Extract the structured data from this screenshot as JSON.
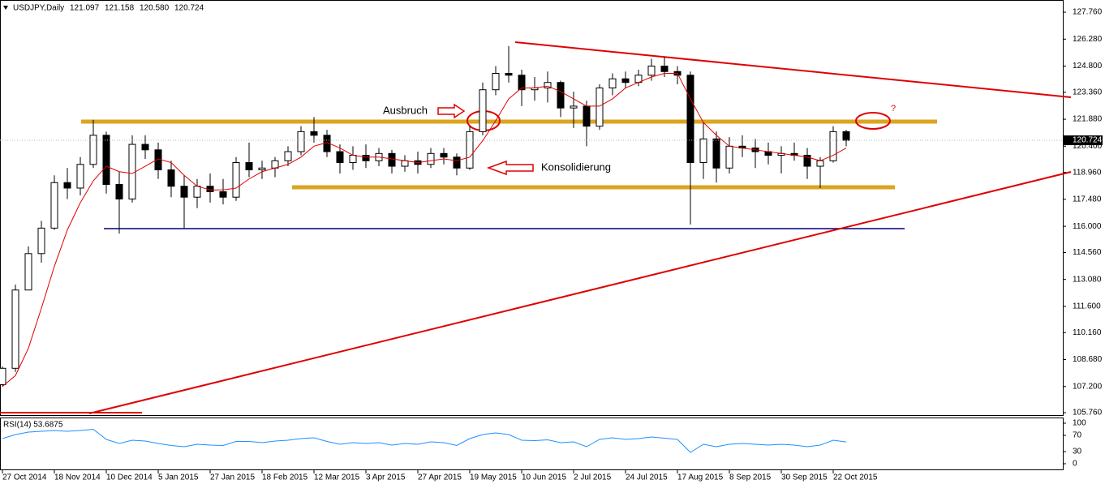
{
  "chart_data": {
    "type": "candlestick",
    "header": "USDJPY,Daily",
    "header_ohlc": [
      "121.097",
      "121.158",
      "120.580",
      "120.724"
    ],
    "categories": [
      "27 Oct 2014",
      null,
      null,
      null,
      "18 Nov 2014",
      null,
      null,
      null,
      "10 Dec 2014",
      null,
      null,
      null,
      "5 Jan 2015",
      null,
      null,
      null,
      "27 Jan 2015",
      null,
      null,
      null,
      "18 Feb 2015",
      null,
      null,
      null,
      "12 Mar 2015",
      null,
      null,
      null,
      "3 Apr 2015",
      null,
      null,
      null,
      "27 Apr 2015",
      null,
      null,
      null,
      "19 May 2015",
      null,
      null,
      null,
      "10 Jun 2015",
      null,
      null,
      null,
      "2 Jul 2015",
      null,
      null,
      null,
      "24 Jul 2015",
      null,
      null,
      null,
      "17 Aug 2015",
      null,
      null,
      null,
      "8 Sep 2015",
      null,
      null,
      null,
      "30 Sep 2015",
      null,
      null,
      null,
      "22 Oct 2015",
      null
    ],
    "open": [
      107.3,
      108.2,
      112.5,
      114.5,
      115.9,
      118.4,
      118.1,
      119.4,
      121.0,
      118.3,
      117.5,
      120.5,
      120.2,
      119.1,
      118.2,
      117.6,
      118.2,
      117.9,
      117.6,
      119.5,
      119.1,
      119.2,
      119.6,
      120.1,
      121.2,
      121.0,
      120.1,
      119.5,
      119.9,
      119.6,
      120.0,
      119.3,
      119.6,
      119.4,
      120.0,
      119.8,
      119.2,
      121.2,
      123.5,
      124.4,
      124.3,
      123.5,
      123.6,
      123.9,
      122.5,
      122.6,
      121.5,
      123.6,
      124.1,
      123.9,
      124.3,
      124.8,
      124.5,
      124.3,
      119.5,
      120.8,
      119.2,
      120.4,
      120.3,
      120.1,
      119.9,
      120.0,
      119.9,
      119.3,
      119.6,
      121.2
    ],
    "high": [
      108.3,
      112.8,
      114.9,
      116.3,
      118.8,
      119.2,
      119.8,
      121.85,
      121.2,
      119.0,
      121.0,
      121.0,
      120.6,
      119.6,
      118.8,
      118.6,
      118.9,
      118.6,
      119.8,
      120.6,
      119.6,
      119.8,
      120.4,
      121.5,
      122.0,
      121.3,
      120.5,
      120.4,
      120.5,
      120.3,
      120.2,
      119.9,
      120.1,
      120.3,
      120.3,
      120.0,
      121.5,
      123.9,
      124.8,
      125.9,
      124.6,
      124.2,
      124.5,
      124.0,
      123.4,
      122.9,
      123.8,
      124.4,
      124.5,
      124.6,
      125.2,
      125.3,
      124.8,
      124.5,
      121.7,
      121.2,
      120.9,
      121.0,
      120.8,
      120.6,
      120.4,
      120.6,
      120.3,
      119.8,
      121.5,
      121.3
    ],
    "low": [
      107.2,
      108.0,
      112.5,
      114.0,
      115.8,
      117.5,
      117.7,
      119.2,
      117.8,
      115.6,
      117.3,
      119.7,
      118.6,
      117.6,
      115.9,
      117.0,
      117.3,
      117.2,
      117.4,
      118.7,
      118.6,
      118.7,
      119.3,
      119.9,
      120.6,
      119.8,
      118.9,
      119.1,
      119.2,
      119.3,
      118.9,
      119.0,
      118.9,
      119.2,
      119.4,
      118.8,
      119.1,
      121.0,
      123.2,
      123.9,
      122.6,
      122.9,
      122.8,
      122.0,
      121.4,
      120.4,
      121.3,
      123.2,
      123.6,
      123.7,
      124.0,
      124.2,
      123.8,
      116.1,
      118.6,
      118.4,
      118.9,
      119.8,
      119.2,
      119.4,
      118.9,
      119.6,
      118.6,
      118.1,
      119.5,
      120.4
    ],
    "close": [
      108.2,
      112.5,
      114.5,
      115.9,
      118.4,
      118.1,
      119.4,
      121.0,
      118.3,
      117.5,
      120.5,
      120.2,
      119.1,
      118.2,
      117.6,
      118.2,
      117.9,
      117.6,
      119.5,
      119.1,
      119.2,
      119.6,
      120.1,
      121.2,
      121.0,
      120.1,
      119.5,
      119.9,
      119.6,
      120.0,
      119.3,
      119.6,
      119.4,
      120.0,
      119.8,
      119.2,
      121.2,
      123.5,
      124.4,
      124.3,
      123.5,
      123.6,
      123.9,
      122.5,
      122.6,
      121.5,
      123.6,
      124.1,
      123.9,
      124.3,
      124.8,
      124.5,
      124.3,
      119.5,
      120.8,
      119.2,
      120.4,
      120.3,
      120.1,
      119.9,
      120.0,
      119.9,
      119.3,
      119.6,
      121.2,
      120.724
    ],
    "ma": {
      "color": "#e00000",
      "values": [
        107.2,
        107.8,
        109.3,
        111.5,
        113.8,
        115.8,
        117.3,
        118.5,
        119.3,
        119.0,
        118.9,
        119.3,
        119.7,
        119.5,
        118.8,
        118.2,
        118.0,
        118.0,
        118.1,
        118.6,
        119.0,
        119.2,
        119.4,
        119.8,
        120.4,
        120.6,
        120.3,
        119.9,
        119.8,
        119.8,
        119.7,
        119.6,
        119.5,
        119.6,
        119.7,
        119.6,
        119.8,
        120.7,
        121.8,
        123.0,
        123.6,
        123.6,
        123.7,
        123.4,
        123.0,
        122.6,
        122.6,
        123.0,
        123.6,
        123.9,
        124.2,
        124.4,
        124.4,
        123.0,
        121.7,
        121.0,
        120.4,
        120.3,
        120.2,
        120.1,
        120.0,
        119.9,
        119.8,
        119.6,
        119.9,
        120.3
      ]
    },
    "last_price": {
      "value": 120.724,
      "label": "120.724"
    },
    "xlim": [
      -0.1875,
      81.6875
    ],
    "ylim": [
      105.63,
      128.43
    ],
    "yticks": [
      {
        "value": 127.76,
        "label": "127.760"
      },
      {
        "value": 126.28,
        "label": "126.280"
      },
      {
        "value": 124.8,
        "label": "124.800"
      },
      {
        "value": 123.36,
        "label": "123.360"
      },
      {
        "value": 121.88,
        "label": "121.880"
      },
      {
        "value": 120.4,
        "label": "120.400"
      },
      {
        "value": 118.96,
        "label": "118.960"
      },
      {
        "value": 117.48,
        "label": "117.480"
      },
      {
        "value": 116,
        "label": "116.000"
      },
      {
        "value": 114.56,
        "label": "114.560"
      },
      {
        "value": 113.08,
        "label": "113.080"
      },
      {
        "value": 111.6,
        "label": "111.600"
      },
      {
        "value": 110.16,
        "label": "110.160"
      },
      {
        "value": 108.68,
        "label": "108.680"
      },
      {
        "value": 107.2,
        "label": "107.200"
      },
      {
        "value": 105.76,
        "label": "105.760"
      }
    ],
    "rsi": {
      "label": "RSI(14) 53.6875",
      "color": "#1e90ff",
      "ylim": [
        -16,
        112
      ],
      "yticks": [
        100,
        70,
        30,
        0
      ],
      "values": [
        62,
        72,
        78,
        80,
        82,
        80,
        82,
        85,
        60,
        50,
        58,
        56,
        50,
        45,
        42,
        48,
        46,
        45,
        55,
        55,
        52,
        56,
        58,
        62,
        64,
        55,
        48,
        52,
        50,
        52,
        46,
        50,
        48,
        54,
        52,
        45,
        62,
        72,
        76,
        72,
        58,
        57,
        59,
        52,
        54,
        42,
        60,
        64,
        60,
        62,
        66,
        63,
        60,
        28,
        48,
        42,
        48,
        50,
        48,
        46,
        48,
        46,
        42,
        46,
        58,
        53.6875
      ]
    },
    "annotations": {
      "breakout": "Ausbruch",
      "consolidation": "Konsolidierung",
      "question": "?"
    }
  }
}
